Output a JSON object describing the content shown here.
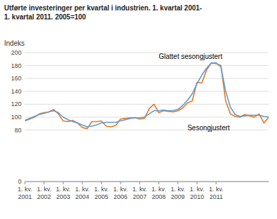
{
  "chart_data": {
    "type": "line",
    "title": "Utførte investeringer per kvartal i industrien. 1. kvartal 2001-\n1. kvartal 2011. 2005=100",
    "y_label": "Indeks",
    "categories": [
      "1. kv.\n2001",
      null,
      null,
      null,
      "1. kv.\n2002",
      null,
      null,
      null,
      "1. kv.\n2003",
      null,
      null,
      null,
      "1. kv.\n2004",
      null,
      null,
      null,
      "1. kv.\n2005",
      null,
      null,
      null,
      "1. kv.\n2006",
      null,
      null,
      null,
      "1. kv.\n2007",
      null,
      null,
      null,
      "1. kv.\n2008",
      null,
      null,
      null,
      "1. kv.\n2009",
      null,
      null,
      null,
      "1. kv.\n2010",
      null,
      null,
      null,
      "1. kv.\n2011",
      null,
      null,
      null,
      null,
      null,
      null,
      null,
      null,
      null,
      null,
      null
    ],
    "series": [
      {
        "name": "Glattet sesongjustert",
        "color": "#5B9BD5",
        "values": [
          95,
          98,
          101,
          104,
          106,
          108,
          110,
          107,
          100,
          96,
          93,
          91,
          88,
          85,
          86,
          88,
          91,
          92,
          92,
          92,
          94,
          96,
          98,
          99,
          99,
          100,
          105,
          110,
          110,
          111,
          110,
          110,
          112,
          118,
          126,
          136,
          152,
          165,
          176,
          184,
          184,
          178,
          140,
          115,
          104,
          101,
          102,
          103,
          103,
          103,
          101,
          100
        ]
      },
      {
        "name": "Sesongjustert",
        "color": "#E87722",
        "values": [
          94,
          97,
          100,
          105,
          107,
          108,
          112,
          105,
          94,
          93,
          95,
          91,
          84,
          82,
          93,
          93,
          94,
          86,
          85,
          87,
          97,
          98,
          99,
          99,
          97,
          98,
          113,
          120,
          107,
          110,
          109,
          108,
          110,
          114,
          122,
          125,
          154,
          153,
          173,
          184,
          183,
          180,
          125,
          105,
          101,
          100,
          104,
          102,
          100,
          105,
          91,
          100
        ]
      }
    ],
    "ylim": [
      0,
      200
    ],
    "yticks": [
      0,
      80,
      100,
      120,
      140,
      160,
      180,
      200
    ],
    "grid": true
  }
}
